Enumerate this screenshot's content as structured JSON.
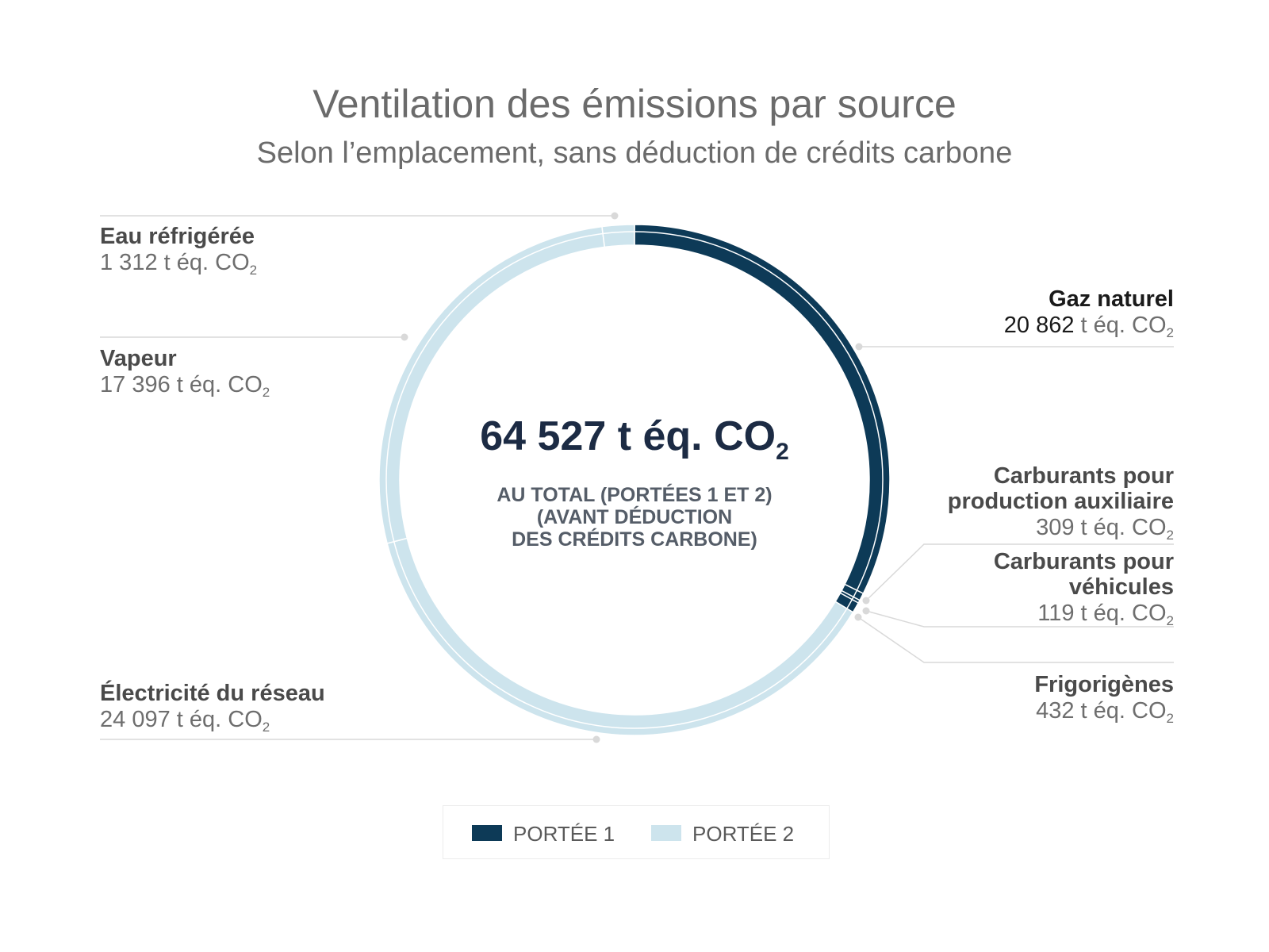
{
  "colors": {
    "scope1": "#0d3a57",
    "scope2": "#cde4ed",
    "leader": "#d9d9d9",
    "title": "#6b6b6b",
    "total": "#1c2b44"
  },
  "title": "Ventilation des émissions par source",
  "subtitle": "Selon l’emplacement, sans déduction de crédits carbone",
  "center": {
    "total_text": "64 527 t éq. CO",
    "total_sub": "2",
    "caption_lines": [
      "AU TOTAL (PORTÉES 1 ET 2)",
      "(AVANT DÉDUCTION",
      "DES CRÉDITS CARBONE)"
    ]
  },
  "unit_text": "t éq. CO",
  "unit_sub": "2",
  "legend": [
    {
      "label": "PORTÉE 1",
      "color": "#0d3a57"
    },
    {
      "label": "PORTÉE 2",
      "color": "#cde4ed"
    }
  ],
  "chart_data": {
    "type": "pie",
    "title": "Ventilation des émissions par source",
    "subtitle": "Selon l’emplacement, sans déduction de crédits carbone",
    "total": 64527,
    "unit": "t éq. CO2",
    "slices": [
      {
        "label": "Gaz naturel",
        "value": 20862,
        "value_text": "20 862",
        "scope": "PORTÉE 1"
      },
      {
        "label": "Carburants pour production auxiliaire",
        "value": 309,
        "value_text": "309",
        "scope": "PORTÉE 1"
      },
      {
        "label": "Carburants pour véhicules",
        "value": 119,
        "value_text": "119",
        "scope": "PORTÉE 1"
      },
      {
        "label": "Frigorigènes",
        "value": 432,
        "value_text": "432",
        "scope": "PORTÉE 1"
      },
      {
        "label": "Électricité du réseau",
        "value": 24097,
        "value_text": "24 097",
        "scope": "PORTÉE 2"
      },
      {
        "label": "Vapeur",
        "value": 17396,
        "value_text": "17 396",
        "scope": "PORTÉE 2"
      },
      {
        "label": "Eau réfrigérée",
        "value": 1312,
        "value_text": "1 312",
        "scope": "PORTÉE 2"
      }
    ],
    "legend_position": "bottom"
  }
}
